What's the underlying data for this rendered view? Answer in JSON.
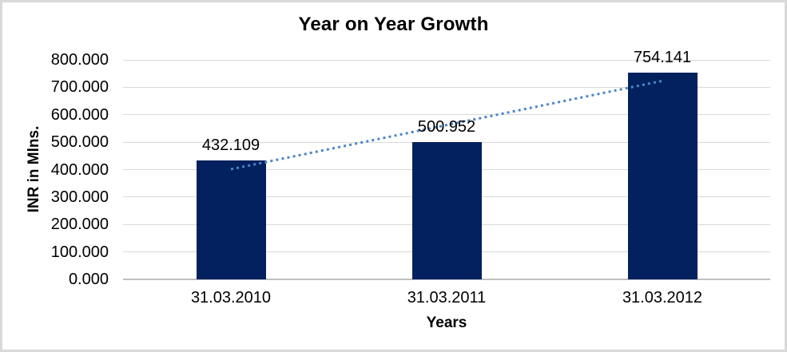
{
  "chart_data": {
    "type": "bar",
    "title": "Year on Year Growth",
    "xlabel": "Years",
    "ylabel": "INR in Mlns.",
    "categories": [
      "31.03.2010",
      "31.03.2011",
      "31.03.2012"
    ],
    "values": [
      432.109,
      500.952,
      754.141
    ],
    "data_labels": [
      "432.109",
      "500.952",
      "754.141"
    ],
    "ylim": [
      0,
      800
    ],
    "ytick_values": [
      0,
      100,
      200,
      300,
      400,
      500,
      600,
      700,
      800
    ],
    "ytick_labels": [
      "0.000",
      "100.000",
      "200.000",
      "300.000",
      "400.000",
      "500.000",
      "600.000",
      "700.000",
      "800.000"
    ],
    "grid": true,
    "legend": "none",
    "colors": {
      "bar_fill": "#03215F",
      "gridline": "#D9D9D9",
      "axis_line": "#BFBFBF",
      "trendline": "#4A86C8",
      "frame_border": "#D9D9D9",
      "text": "#000000"
    },
    "trendline": {
      "type": "linear",
      "style": "dotted",
      "color": "#4A86C8",
      "start_value": 401.4,
      "end_value": 723.4
    }
  }
}
